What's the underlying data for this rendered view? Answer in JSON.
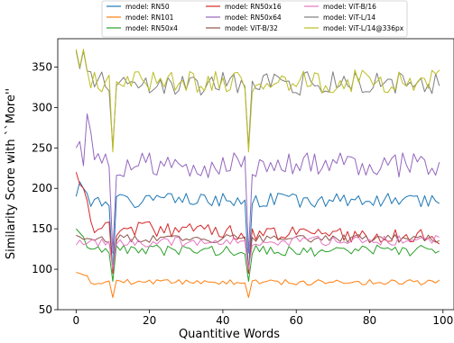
{
  "chart_data": {
    "type": "line",
    "xlabel": "Quantitive Words",
    "ylabel": "Similarity Score with ``More''",
    "xlim": [
      -5,
      103
    ],
    "ylim": [
      50,
      385
    ],
    "xticks": [
      0,
      20,
      40,
      60,
      80,
      100
    ],
    "yticks": [
      50,
      100,
      150,
      200,
      250,
      300,
      350
    ],
    "grid": false,
    "legend_position": "top-center, above plot, 3 columns",
    "series": [
      {
        "name": "model: RN50",
        "color": "#1f77b4",
        "base": 185,
        "slope": 0,
        "amp": 9,
        "dip": 95,
        "seed": 1,
        "start": 190,
        "override": {
          "1": 208,
          "2": 200
        }
      },
      {
        "name": "model: RN101",
        "color": "#ff7f0e",
        "base": 84,
        "slope": 0,
        "amp": 3.5,
        "dip": 65,
        "seed": 2,
        "start": 96,
        "override": {
          "1": 95,
          "2": 93,
          "3": 92
        }
      },
      {
        "name": "model: RN50x4",
        "color": "#2ca02c",
        "base": 123,
        "slope": 0,
        "amp": 7,
        "dip": 85,
        "seed": 3,
        "start": 150,
        "override": {
          "1": 145,
          "2": 140
        }
      },
      {
        "name": "model: RN50x16",
        "color": "#d62728",
        "base": 152,
        "slope": -0.12,
        "amp": 10,
        "dip": 95,
        "seed": 4,
        "start": 220,
        "override": {
          "1": 205,
          "2": 200,
          "3": 185
        }
      },
      {
        "name": "model: RN50x64",
        "color": "#9467bd",
        "base": 228,
        "slope": 0,
        "amp": 16,
        "dip": 120,
        "seed": 5,
        "start": 250,
        "override": {
          "1": 258,
          "3": 292,
          "4": 270
        }
      },
      {
        "name": "model: ViT-B/32",
        "color": "#8c564b",
        "base": 138,
        "slope": 0,
        "amp": 5,
        "dip": 100,
        "seed": 6,
        "start": 142,
        "override": {
          "1": 140
        }
      },
      {
        "name": "model: ViT-B/16",
        "color": "#e377c2",
        "base": 133,
        "slope": 0.03,
        "amp": 6,
        "dip": 100,
        "seed": 7,
        "start": 130,
        "override": {
          "1": 136
        }
      },
      {
        "name": "model: ViT-L/14",
        "color": "#7f7f7f",
        "base": 330,
        "slope": 0,
        "amp": 15,
        "dip": 250,
        "seed": 8,
        "start": 370,
        "override": {
          "1": 348,
          "2": 370,
          "3": 345
        }
      },
      {
        "name": "model: ViT-L/14@336px",
        "color": "#bcbd22",
        "base": 332,
        "slope": 0,
        "amp": 15,
        "dip": 245,
        "seed": 9,
        "start": 372,
        "override": {
          "1": 350,
          "2": 372,
          "3": 346
        }
      }
    ],
    "x_count": 100,
    "dip_points": [
      10,
      47
    ]
  }
}
